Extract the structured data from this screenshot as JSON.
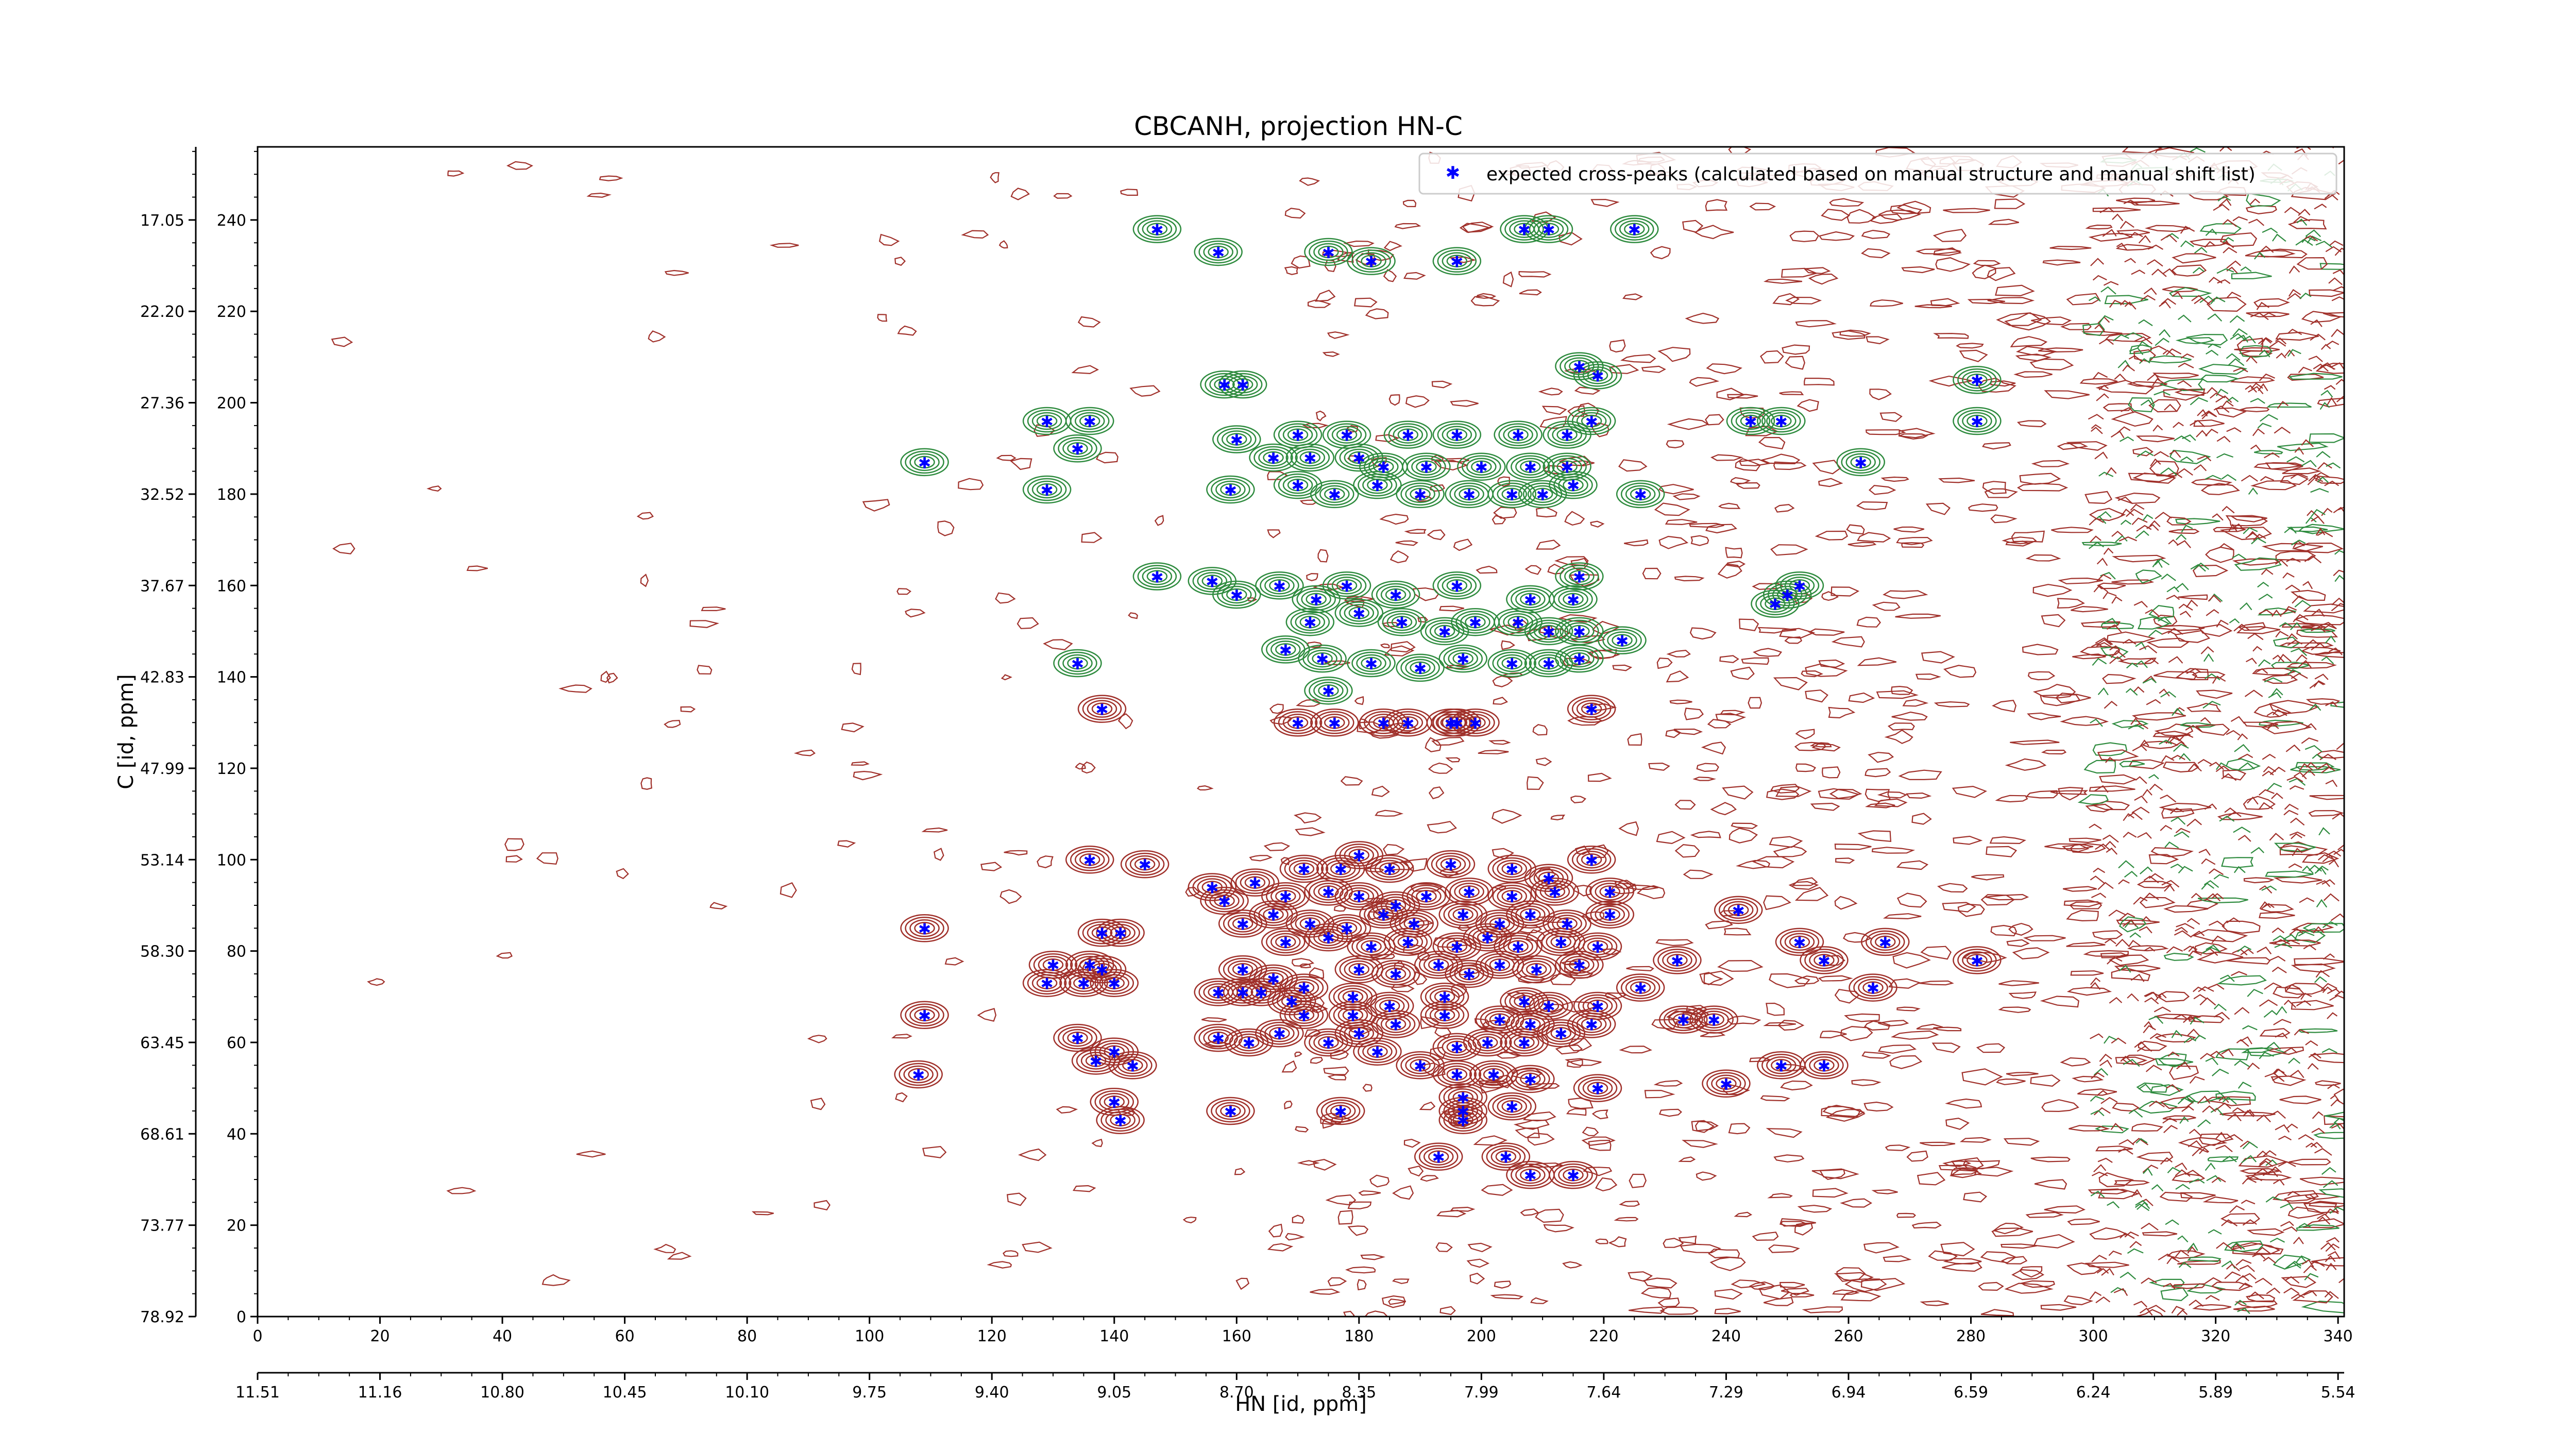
{
  "chart_data": {
    "type": "scatter",
    "title": "CBCANH, projection HN-C",
    "xlabel": "HN [id, ppm]",
    "ylabel": "C [id, ppm]",
    "xlim": [
      0,
      341
    ],
    "ylim": [
      0,
      256
    ],
    "x_ticks": [
      0,
      20,
      40,
      60,
      80,
      100,
      120,
      140,
      160,
      180,
      200,
      220,
      240,
      260,
      280,
      300,
      320,
      340
    ],
    "y_ticks": [
      0,
      20,
      40,
      60,
      80,
      100,
      120,
      140,
      160,
      180,
      200,
      220,
      240
    ],
    "ppm_x_ticks": [
      "11.51",
      "11.16",
      "10.80",
      "10.45",
      "10.10",
      "9.75",
      "9.40",
      "9.05",
      "8.70",
      "8.35",
      "7.99",
      "7.64",
      "7.29",
      "6.94",
      "6.59",
      "6.24",
      "5.89",
      "5.54"
    ],
    "ppm_y_ticks": [
      "78.92",
      "73.77",
      "68.61",
      "63.45",
      "58.30",
      "53.14",
      "47.99",
      "42.83",
      "37.67",
      "32.52",
      "27.36",
      "22.20",
      "17.05"
    ],
    "grid": false,
    "legend_position": "top-right",
    "contour_colors": {
      "positive": "#a0302a",
      "negative": "#2e8b3e"
    },
    "series": [
      {
        "name": "expected cross-peaks (calculated based on manual structure and manual shift list)",
        "color": "#0000ff",
        "marker": "star",
        "points": [
          [
            147,
            238
          ],
          [
            157,
            233
          ],
          [
            175,
            233
          ],
          [
            182,
            231
          ],
          [
            196,
            231
          ],
          [
            207,
            238
          ],
          [
            211,
            238
          ],
          [
            225,
            238
          ],
          [
            216,
            208
          ],
          [
            219,
            206
          ],
          [
            158,
            204
          ],
          [
            161,
            204
          ],
          [
            129,
            196
          ],
          [
            136,
            196
          ],
          [
            109,
            187
          ],
          [
            134,
            190
          ],
          [
            129,
            181
          ],
          [
            159,
            181
          ],
          [
            160,
            192
          ],
          [
            170,
            193
          ],
          [
            178,
            193
          ],
          [
            188,
            193
          ],
          [
            196,
            193
          ],
          [
            206,
            193
          ],
          [
            214,
            193
          ],
          [
            218,
            196
          ],
          [
            281,
            205
          ],
          [
            281,
            196
          ],
          [
            166,
            188
          ],
          [
            172,
            188
          ],
          [
            180,
            188
          ],
          [
            184,
            186
          ],
          [
            191,
            186
          ],
          [
            200,
            186
          ],
          [
            208,
            186
          ],
          [
            214,
            186
          ],
          [
            262,
            187
          ],
          [
            244,
            196
          ],
          [
            249,
            196
          ],
          [
            170,
            182
          ],
          [
            176,
            180
          ],
          [
            183,
            182
          ],
          [
            190,
            180
          ],
          [
            198,
            180
          ],
          [
            205,
            180
          ],
          [
            210,
            180
          ],
          [
            215,
            182
          ],
          [
            226,
            180
          ],
          [
            147,
            162
          ],
          [
            156,
            161
          ],
          [
            160,
            158
          ],
          [
            167,
            160
          ],
          [
            173,
            157
          ],
          [
            178,
            160
          ],
          [
            186,
            158
          ],
          [
            196,
            160
          ],
          [
            208,
            157
          ],
          [
            215,
            157
          ],
          [
            172,
            152
          ],
          [
            180,
            154
          ],
          [
            187,
            152
          ],
          [
            194,
            150
          ],
          [
            199,
            152
          ],
          [
            206,
            152
          ],
          [
            211,
            150
          ],
          [
            216,
            150
          ],
          [
            216,
            162
          ],
          [
            248,
            156
          ],
          [
            250,
            158
          ],
          [
            252,
            160
          ],
          [
            168,
            146
          ],
          [
            174,
            144
          ],
          [
            182,
            143
          ],
          [
            190,
            142
          ],
          [
            197,
            144
          ],
          [
            205,
            143
          ],
          [
            211,
            143
          ],
          [
            216,
            144
          ],
          [
            223,
            148
          ],
          [
            134,
            143
          ],
          [
            138,
            133
          ],
          [
            175,
            137
          ],
          [
            218,
            133
          ],
          [
            170,
            130
          ],
          [
            176,
            130
          ],
          [
            184,
            130
          ],
          [
            188,
            130
          ],
          [
            195,
            130
          ],
          [
            196,
            130
          ],
          [
            199,
            130
          ],
          [
            136,
            100
          ],
          [
            145,
            99
          ],
          [
            171,
            98
          ],
          [
            177,
            98
          ],
          [
            180,
            101
          ],
          [
            185,
            98
          ],
          [
            195,
            99
          ],
          [
            205,
            98
          ],
          [
            211,
            96
          ],
          [
            218,
            100
          ],
          [
            156,
            94
          ],
          [
            163,
            95
          ],
          [
            168,
            92
          ],
          [
            175,
            93
          ],
          [
            180,
            92
          ],
          [
            186,
            90
          ],
          [
            191,
            92
          ],
          [
            198,
            93
          ],
          [
            205,
            92
          ],
          [
            212,
            93
          ],
          [
            221,
            93
          ],
          [
            158,
            91
          ],
          [
            161,
            86
          ],
          [
            166,
            88
          ],
          [
            172,
            86
          ],
          [
            178,
            85
          ],
          [
            184,
            88
          ],
          [
            189,
            86
          ],
          [
            197,
            88
          ],
          [
            203,
            86
          ],
          [
            208,
            88
          ],
          [
            214,
            86
          ],
          [
            221,
            88
          ],
          [
            242,
            89
          ],
          [
            109,
            85
          ],
          [
            138,
            84
          ],
          [
            141,
            84
          ],
          [
            168,
            82
          ],
          [
            175,
            83
          ],
          [
            182,
            81
          ],
          [
            188,
            82
          ],
          [
            196,
            81
          ],
          [
            201,
            83
          ],
          [
            206,
            81
          ],
          [
            213,
            82
          ],
          [
            219,
            81
          ],
          [
            252,
            82
          ],
          [
            266,
            82
          ],
          [
            130,
            77
          ],
          [
            136,
            77
          ],
          [
            138,
            76
          ],
          [
            161,
            76
          ],
          [
            166,
            74
          ],
          [
            171,
            72
          ],
          [
            180,
            76
          ],
          [
            186,
            75
          ],
          [
            193,
            77
          ],
          [
            198,
            75
          ],
          [
            203,
            77
          ],
          [
            209,
            76
          ],
          [
            216,
            77
          ],
          [
            232,
            78
          ],
          [
            256,
            78
          ],
          [
            281,
            78
          ],
          [
            129,
            73
          ],
          [
            135,
            73
          ],
          [
            140,
            73
          ],
          [
            157,
            71
          ],
          [
            161,
            71
          ],
          [
            164,
            71
          ],
          [
            169,
            69
          ],
          [
            179,
            70
          ],
          [
            185,
            68
          ],
          [
            194,
            70
          ],
          [
            207,
            69
          ],
          [
            211,
            68
          ],
          [
            219,
            68
          ],
          [
            226,
            72
          ],
          [
            264,
            72
          ],
          [
            109,
            66
          ],
          [
            171,
            66
          ],
          [
            179,
            66
          ],
          [
            186,
            64
          ],
          [
            194,
            66
          ],
          [
            203,
            65
          ],
          [
            208,
            64
          ],
          [
            213,
            62
          ],
          [
            218,
            64
          ],
          [
            233,
            65
          ],
          [
            238,
            65
          ],
          [
            134,
            61
          ],
          [
            157,
            61
          ],
          [
            162,
            60
          ],
          [
            167,
            62
          ],
          [
            175,
            60
          ],
          [
            180,
            62
          ],
          [
            183,
            58
          ],
          [
            196,
            59
          ],
          [
            201,
            60
          ],
          [
            207,
            60
          ],
          [
            137,
            56
          ],
          [
            140,
            58
          ],
          [
            143,
            55
          ],
          [
            190,
            55
          ],
          [
            196,
            53
          ],
          [
            202,
            53
          ],
          [
            208,
            52
          ],
          [
            219,
            50
          ],
          [
            240,
            51
          ],
          [
            256,
            55
          ],
          [
            249,
            55
          ],
          [
            108,
            53
          ],
          [
            140,
            47
          ],
          [
            141,
            43
          ],
          [
            159,
            45
          ],
          [
            177,
            45
          ],
          [
            197,
            48
          ],
          [
            197,
            45
          ],
          [
            205,
            46
          ],
          [
            197,
            43
          ],
          [
            193,
            35
          ],
          [
            204,
            35
          ],
          [
            208,
            31
          ],
          [
            215,
            31
          ]
        ]
      }
    ]
  }
}
